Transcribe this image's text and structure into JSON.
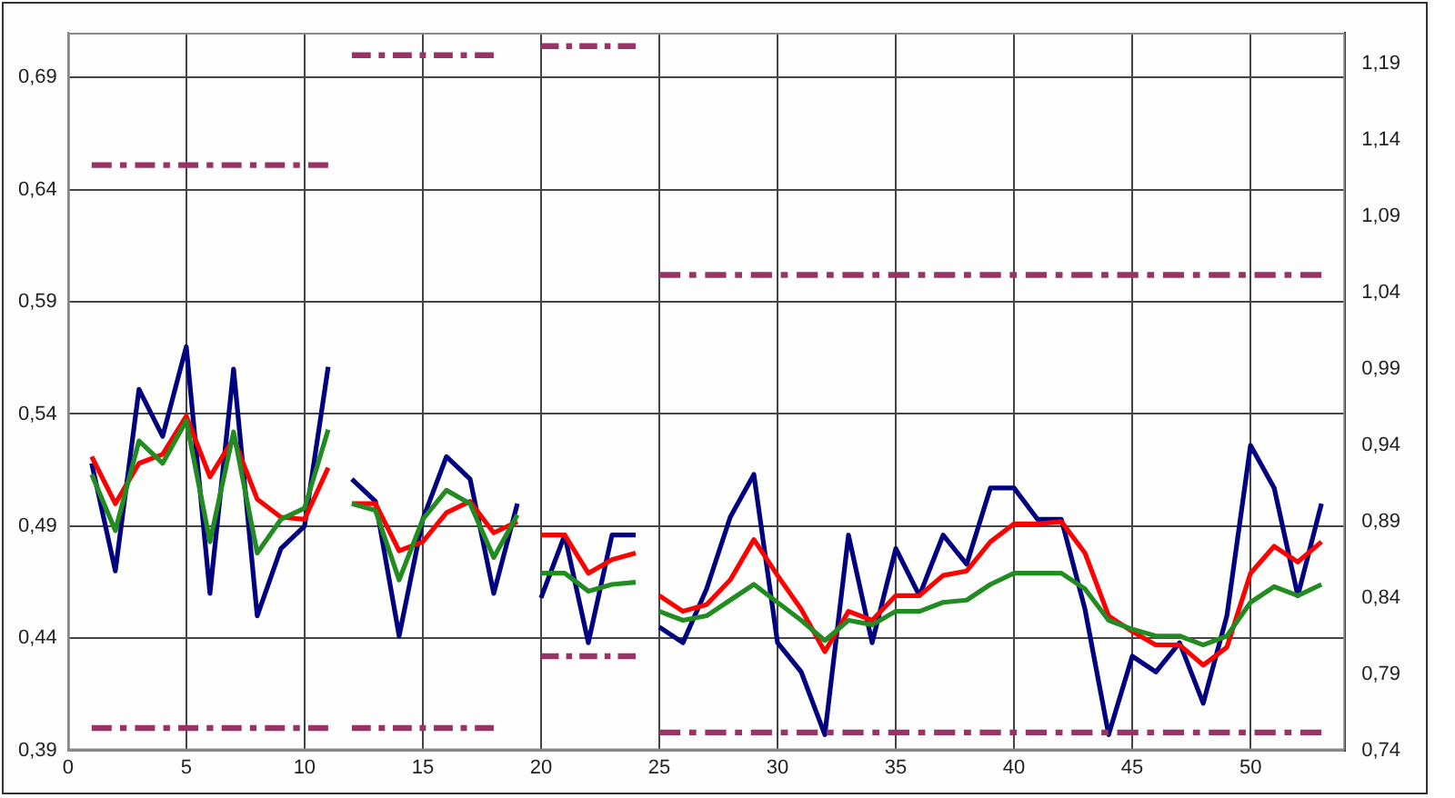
{
  "chart_data": {
    "type": "line",
    "xlim": [
      0,
      54
    ],
    "xticks": [
      0,
      5,
      10,
      15,
      20,
      25,
      30,
      35,
      40,
      45,
      50
    ],
    "ylim": [
      0.39,
      0.71
    ],
    "yticks": [
      {
        "value": 0.39,
        "label": "0,39"
      },
      {
        "value": 0.44,
        "label": "0,44"
      },
      {
        "value": 0.49,
        "label": "0,49"
      },
      {
        "value": 0.54,
        "label": "0,54"
      },
      {
        "value": 0.59,
        "label": "0,59"
      },
      {
        "value": 0.64,
        "label": "0,64"
      },
      {
        "value": 0.69,
        "label": "0,69"
      }
    ],
    "y2lim": [
      0.74,
      1.21
    ],
    "y2ticks": [
      {
        "value": 0.74,
        "label": "0,74"
      },
      {
        "value": 0.79,
        "label": "0,79"
      },
      {
        "value": 0.84,
        "label": "0,84"
      },
      {
        "value": 0.89,
        "label": "0,89"
      },
      {
        "value": 0.94,
        "label": "0,94"
      },
      {
        "value": 0.99,
        "label": "0,99"
      },
      {
        "value": 1.04,
        "label": "1,04"
      },
      {
        "value": 1.09,
        "label": "1,09"
      },
      {
        "value": 1.14,
        "label": "1,14"
      },
      {
        "value": 1.19,
        "label": "1,19"
      }
    ],
    "grid": true,
    "legend": false,
    "marker": "none",
    "line_style": "solid",
    "series": [
      {
        "color": "#993366",
        "line_style": "dashed",
        "x": [
          1,
          11
        ],
        "values": [
          0.651,
          0.651
        ]
      },
      {
        "color": "#993366",
        "line_style": "dashed",
        "x": [
          12,
          18
        ],
        "values": [
          0.7,
          0.7
        ]
      },
      {
        "color": "#993366",
        "line_style": "dashed",
        "x": [
          20,
          24
        ],
        "values": [
          0.704,
          0.704
        ]
      },
      {
        "color": "#993366",
        "line_style": "dashed",
        "x": [
          25,
          53
        ],
        "values": [
          0.602,
          0.602
        ]
      },
      {
        "color": "#993366",
        "line_style": "dashed",
        "x": [
          1,
          11
        ],
        "values": [
          0.4,
          0.4
        ]
      },
      {
        "color": "#993366",
        "line_style": "dashed",
        "x": [
          12,
          18
        ],
        "values": [
          0.4,
          0.4
        ]
      },
      {
        "color": "#993366",
        "line_style": "dashed",
        "x": [
          20,
          24
        ],
        "values": [
          0.432,
          0.432
        ]
      },
      {
        "color": "#993366",
        "line_style": "dashed",
        "x": [
          25,
          53
        ],
        "values": [
          0.398,
          0.398
        ]
      },
      {
        "color": "#228b22",
        "x": [
          1,
          2,
          3,
          4,
          5,
          6,
          7,
          8,
          9,
          10,
          11
        ],
        "values": [
          0.513,
          0.488,
          0.528,
          0.518,
          0.537,
          0.483,
          0.532,
          0.478,
          0.493,
          0.498,
          0.533
        ]
      },
      {
        "color": "#228b22",
        "x": [
          12,
          13,
          14,
          15,
          16,
          17,
          18,
          19
        ],
        "values": [
          0.5,
          0.497,
          0.466,
          0.493,
          0.506,
          0.5,
          0.476,
          0.495
        ]
      },
      {
        "color": "#228b22",
        "x": [
          20,
          21,
          22,
          23,
          24
        ],
        "values": [
          0.469,
          0.469,
          0.461,
          0.464,
          0.465
        ]
      },
      {
        "color": "#228b22",
        "x": [
          25,
          26,
          27,
          28,
          29,
          30,
          31,
          32,
          33,
          34,
          35,
          36,
          37,
          38,
          39,
          40,
          41,
          42,
          43,
          44,
          45,
          46,
          47,
          48,
          49,
          50,
          51,
          52,
          53
        ],
        "values": [
          0.452,
          0.448,
          0.45,
          0.457,
          0.464,
          0.456,
          0.448,
          0.439,
          0.448,
          0.446,
          0.452,
          0.452,
          0.456,
          0.457,
          0.464,
          0.469,
          0.469,
          0.469,
          0.462,
          0.448,
          0.444,
          0.441,
          0.441,
          0.437,
          0.441,
          0.456,
          0.463,
          0.459,
          0.464
        ]
      },
      {
        "color": "#ff0000",
        "x": [
          1,
          2,
          3,
          4,
          5,
          6,
          7,
          8,
          9,
          10,
          11
        ],
        "values": [
          0.521,
          0.5,
          0.518,
          0.522,
          0.539,
          0.512,
          0.529,
          0.502,
          0.494,
          0.493,
          0.516
        ]
      },
      {
        "color": "#ff0000",
        "x": [
          12,
          13,
          14,
          15,
          16,
          17,
          18,
          19
        ],
        "values": [
          0.5,
          0.5,
          0.479,
          0.483,
          0.496,
          0.501,
          0.487,
          0.492
        ]
      },
      {
        "color": "#ff0000",
        "x": [
          20,
          21,
          22,
          23,
          24
        ],
        "values": [
          0.486,
          0.486,
          0.469,
          0.475,
          0.478
        ]
      },
      {
        "color": "#ff0000",
        "x": [
          25,
          26,
          27,
          28,
          29,
          30,
          31,
          32,
          33,
          34,
          35,
          36,
          37,
          38,
          39,
          40,
          41,
          42,
          43,
          44,
          45,
          46,
          47,
          48,
          49,
          50,
          51,
          52,
          53
        ],
        "values": [
          0.459,
          0.452,
          0.455,
          0.466,
          0.484,
          0.468,
          0.453,
          0.434,
          0.452,
          0.448,
          0.459,
          0.459,
          0.468,
          0.47,
          0.483,
          0.491,
          0.491,
          0.492,
          0.478,
          0.45,
          0.443,
          0.437,
          0.437,
          0.428,
          0.436,
          0.469,
          0.481,
          0.474,
          0.483
        ]
      },
      {
        "color": "#000080",
        "x": [
          1,
          2,
          3,
          4,
          5,
          6,
          7,
          8,
          9,
          10,
          11
        ],
        "values": [
          0.518,
          0.47,
          0.551,
          0.53,
          0.57,
          0.46,
          0.56,
          0.45,
          0.48,
          0.49,
          0.561
        ]
      },
      {
        "color": "#000080",
        "x": [
          12,
          13,
          14,
          15,
          16,
          17,
          18,
          19
        ],
        "values": [
          0.511,
          0.501,
          0.441,
          0.493,
          0.521,
          0.511,
          0.46,
          0.5
        ]
      },
      {
        "color": "#000080",
        "x": [
          20,
          21,
          22,
          23,
          24
        ],
        "values": [
          0.458,
          0.486,
          0.438,
          0.486,
          0.486
        ]
      },
      {
        "color": "#000080",
        "x": [
          25,
          26,
          27,
          28,
          29,
          30,
          31,
          32,
          33,
          34,
          35,
          36,
          37,
          38,
          39,
          40,
          41,
          42,
          43,
          44,
          45,
          46,
          47,
          48,
          49,
          50,
          51,
          52,
          53
        ],
        "values": [
          0.445,
          0.438,
          0.462,
          0.494,
          0.513,
          0.438,
          0.425,
          0.397,
          0.486,
          0.438,
          0.48,
          0.459,
          0.486,
          0.473,
          0.507,
          0.507,
          0.493,
          0.493,
          0.453,
          0.397,
          0.432,
          0.425,
          0.438,
          0.411,
          0.45,
          0.526,
          0.507,
          0.459,
          0.5
        ]
      }
    ]
  }
}
